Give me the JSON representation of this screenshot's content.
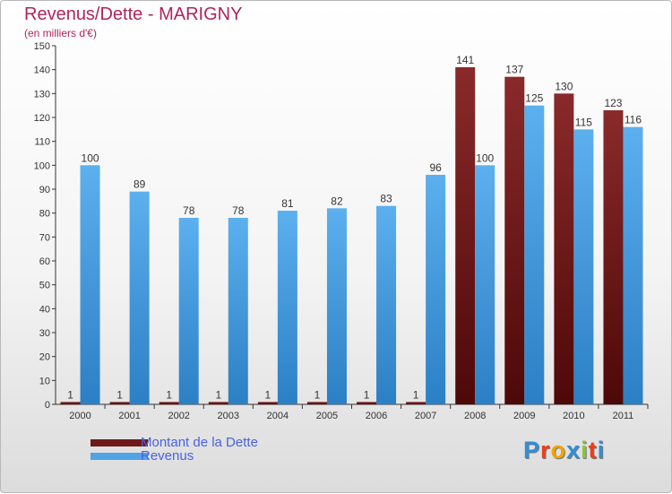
{
  "header": {
    "title": "Revenus/Dette - MARIGNY",
    "subtitle": "(en milliers d'€)"
  },
  "colors": {
    "debt": "#6e1818",
    "revenue": "#4fa3e6",
    "title": "#b0245b",
    "legend_text": "#4a62e0",
    "axis": "#333333"
  },
  "legend": {
    "items": [
      {
        "label": "Montant de la Dette",
        "color": "#6e1818"
      },
      {
        "label": "Revenus",
        "color": "#4fa3e6"
      }
    ]
  },
  "logo": {
    "text": "Proxiti",
    "letter_colors": [
      "#2f8fd6",
      "#e8401c",
      "#f2a400",
      "#2f8fd6",
      "#8ac33c",
      "#e8401c",
      "#2f8fd6"
    ]
  },
  "chart_data": {
    "type": "bar",
    "title": "Revenus/Dette - MARIGNY",
    "subtitle": "(en milliers d'€)",
    "xlabel": "",
    "ylabel": "",
    "ylim": [
      0,
      150
    ],
    "yticks": [
      0,
      10,
      20,
      30,
      40,
      50,
      60,
      70,
      80,
      90,
      100,
      110,
      120,
      130,
      140,
      150
    ],
    "grid": false,
    "legend_position": "bottom-left",
    "categories": [
      "2000",
      "2001",
      "2002",
      "2003",
      "2004",
      "2005",
      "2006",
      "2007",
      "2008",
      "2009",
      "2010",
      "2011"
    ],
    "series": [
      {
        "name": "Montant de la Dette",
        "color": "#6e1818",
        "values": [
          1,
          1,
          1,
          1,
          1,
          1,
          1,
          1,
          141,
          137,
          130,
          123
        ]
      },
      {
        "name": "Revenus",
        "color": "#4fa3e6",
        "values": [
          100,
          89,
          78,
          78,
          81,
          82,
          83,
          96,
          100,
          125,
          115,
          116
        ]
      }
    ]
  }
}
